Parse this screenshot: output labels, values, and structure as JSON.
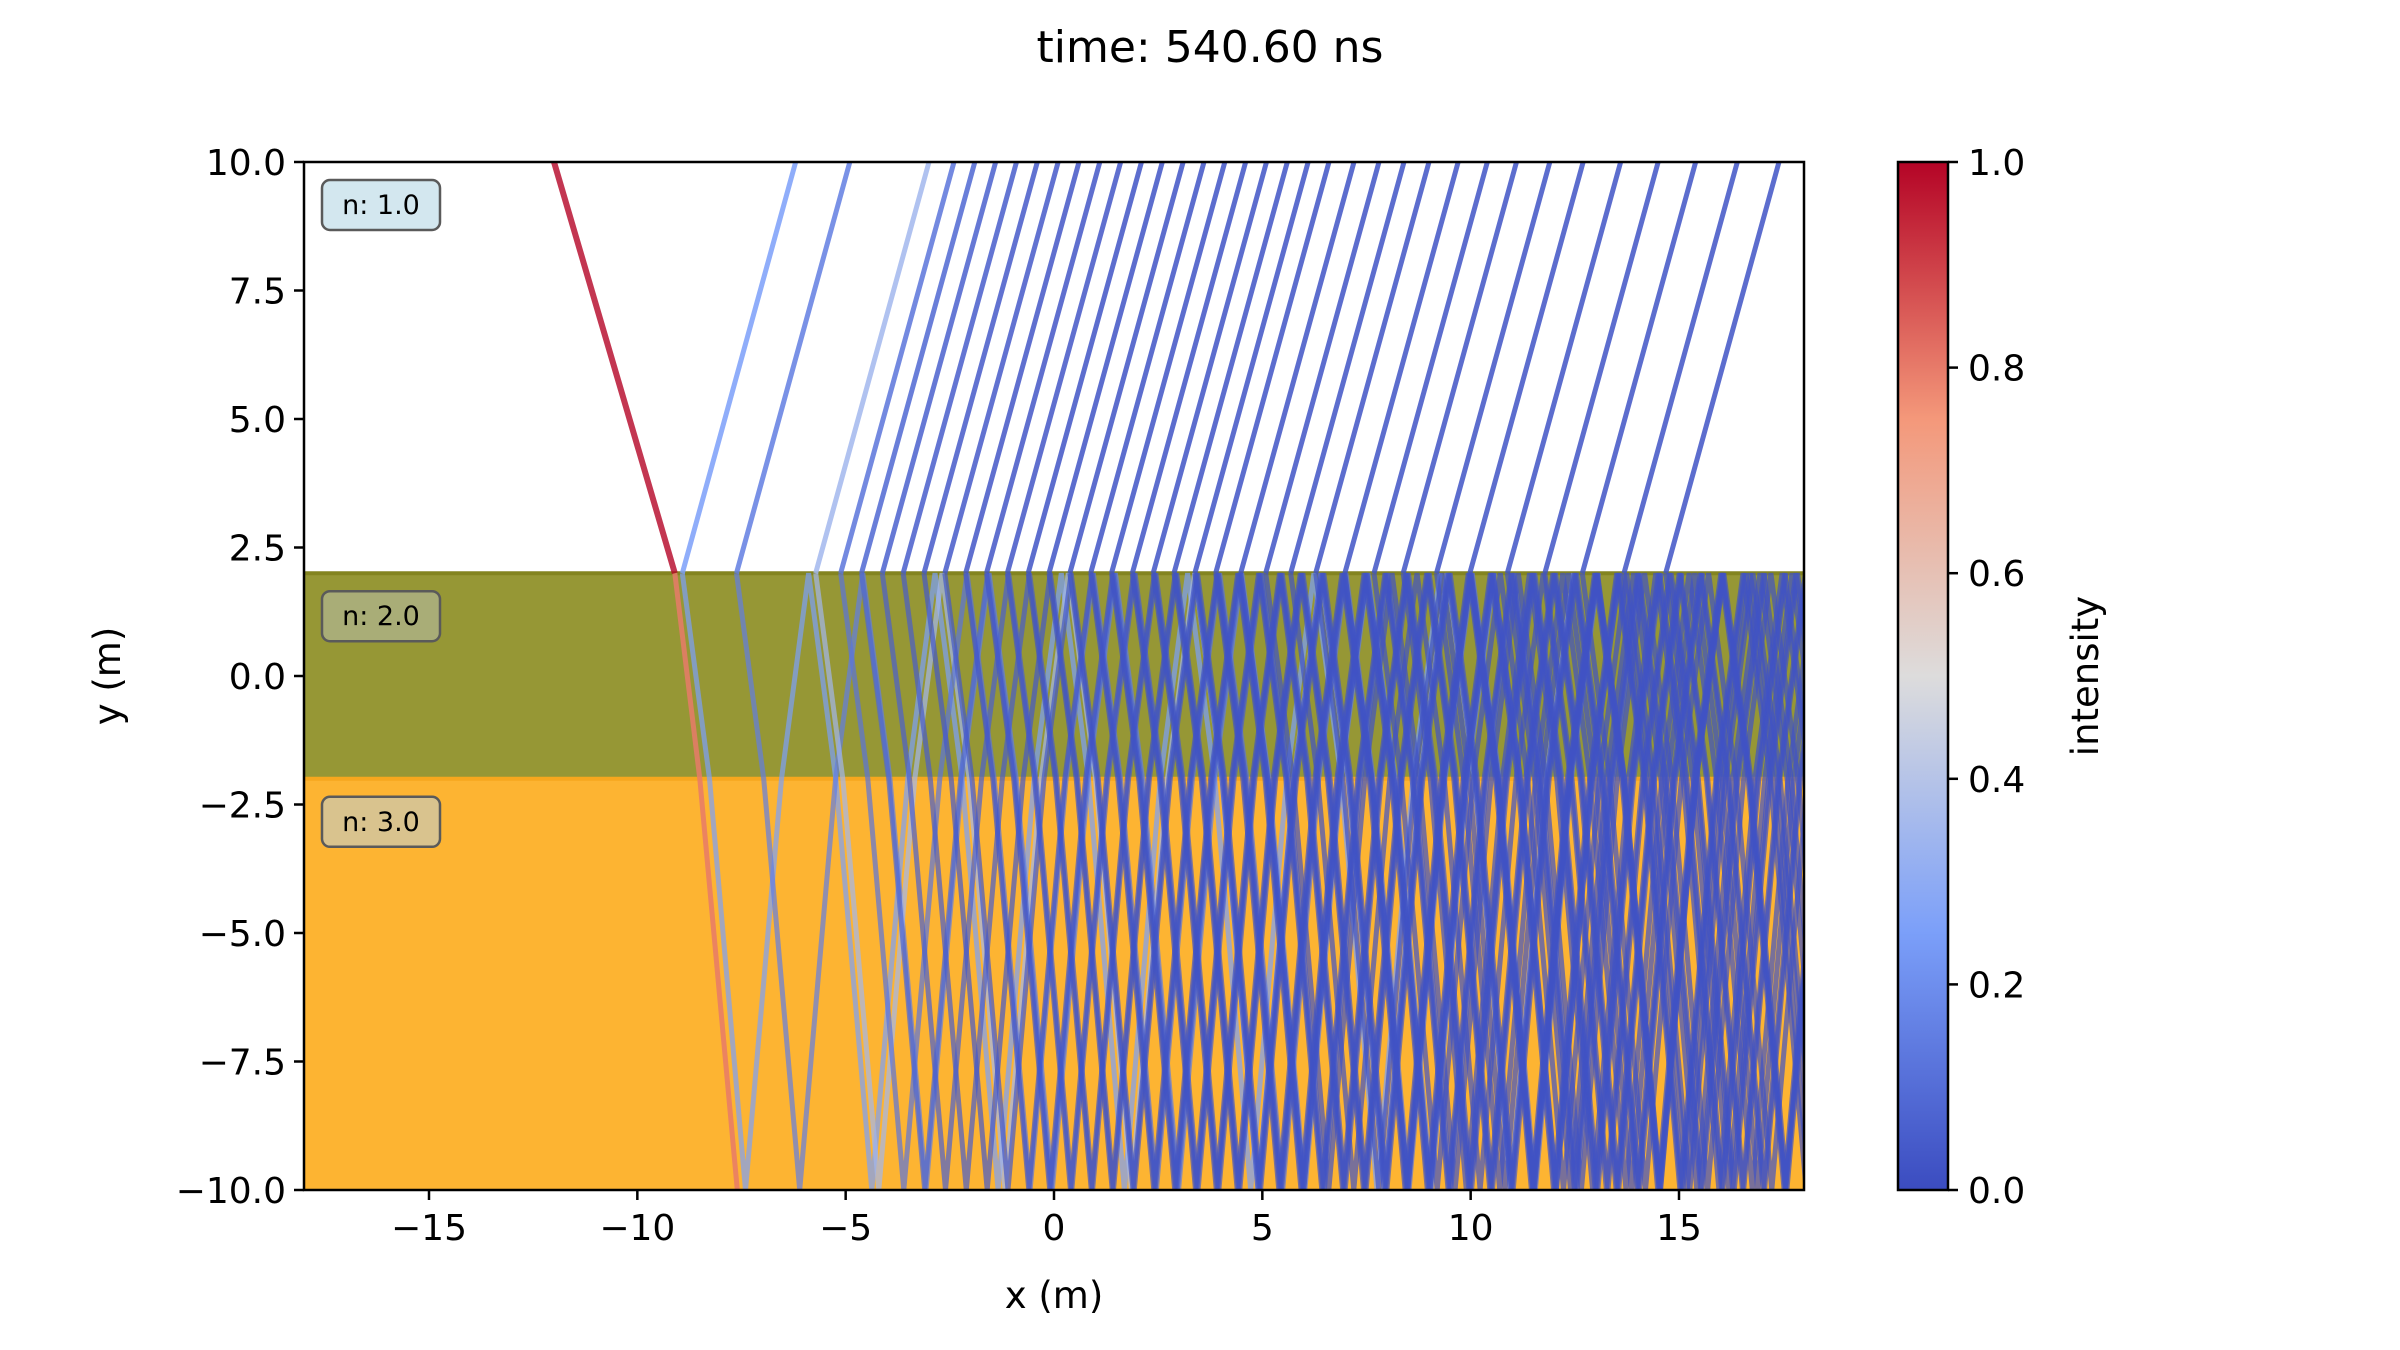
{
  "chart_data": {
    "type": "line",
    "title": "time: 540.60 ns",
    "xlabel": "x (m)",
    "ylabel": "y (m)",
    "xlim": [
      -18,
      18
    ],
    "ylim": [
      -10,
      10
    ],
    "xticks": [
      -15,
      -10,
      -5,
      0,
      5,
      10,
      15
    ],
    "xtick_labels": [
      "−15",
      "−10",
      "−5",
      "0",
      "5",
      "10",
      "15"
    ],
    "yticks": [
      10,
      7.5,
      5,
      2.5,
      0,
      -2.5,
      -5,
      -7.5,
      -10
    ],
    "ytick_labels": [
      "10.0",
      "7.5",
      "5.0",
      "2.5",
      "0.0",
      "−2.5",
      "−5.0",
      "−7.5",
      "−10.0"
    ],
    "grid": false,
    "layers": [
      {
        "label": "n: 1.0",
        "n": 1.0,
        "y_range": [
          2,
          10
        ],
        "color": "#ffffff",
        "badge_color": "#d3e7ef"
      },
      {
        "label": "n: 2.0",
        "n": 2.0,
        "y_range": [
          -2,
          2
        ],
        "color": "#969735",
        "badge_color": "#a9ad77"
      },
      {
        "label": "n: 3.0",
        "n": 3.0,
        "y_range": [
          -10,
          -2
        ],
        "color": "#fdb432",
        "badge_color": "#d9c38e"
      }
    ],
    "incident_ray": {
      "intensity": 1.0,
      "x": [
        -12.0,
        -9.1
      ],
      "y": [
        10,
        2
      ]
    },
    "transmitted_ray": {
      "intensity": 0.8,
      "x": [
        -9.1,
        -8.5,
        -7.6
      ],
      "y": [
        2,
        -2,
        -10
      ]
    },
    "reflected_rays": {
      "x_at_top": [
        -6.2,
        -4.9,
        -3.0,
        -2.4,
        -1.9,
        -1.4,
        -0.9,
        -0.4,
        0.1,
        0.6,
        1.1,
        1.6,
        2.1,
        2.6,
        3.1,
        3.6,
        4.1,
        4.6,
        5.1,
        5.6,
        6.1,
        6.6,
        7.2,
        7.8,
        8.4,
        9.0,
        9.7,
        10.4,
        11.1,
        11.9,
        12.7,
        13.6,
        14.5,
        15.4,
        16.4,
        17.4
      ],
      "intensity": [
        0.25,
        0.15,
        0.35,
        0.12,
        0.08,
        0.06,
        0.05,
        0.04,
        0.04,
        0.03,
        0.03,
        0.03,
        0.02,
        0.02,
        0.02,
        0.02,
        0.02,
        0.02,
        0.02,
        0.02,
        0.02,
        0.02,
        0.02,
        0.02,
        0.02,
        0.02,
        0.02,
        0.02,
        0.02,
        0.02,
        0.02,
        0.02,
        0.02,
        0.02,
        0.02,
        0.02
      ],
      "slope_dx_per_dy_layer1": 0.34
    },
    "colorbar": {
      "label": "intensity",
      "range": [
        0.0,
        1.0
      ],
      "ticks": [
        0.0,
        0.2,
        0.4,
        0.6,
        0.8,
        1.0
      ],
      "tick_labels": [
        "0.0",
        "0.2",
        "0.4",
        "0.6",
        "0.8",
        "1.0"
      ],
      "colormap": "coolwarm"
    }
  }
}
